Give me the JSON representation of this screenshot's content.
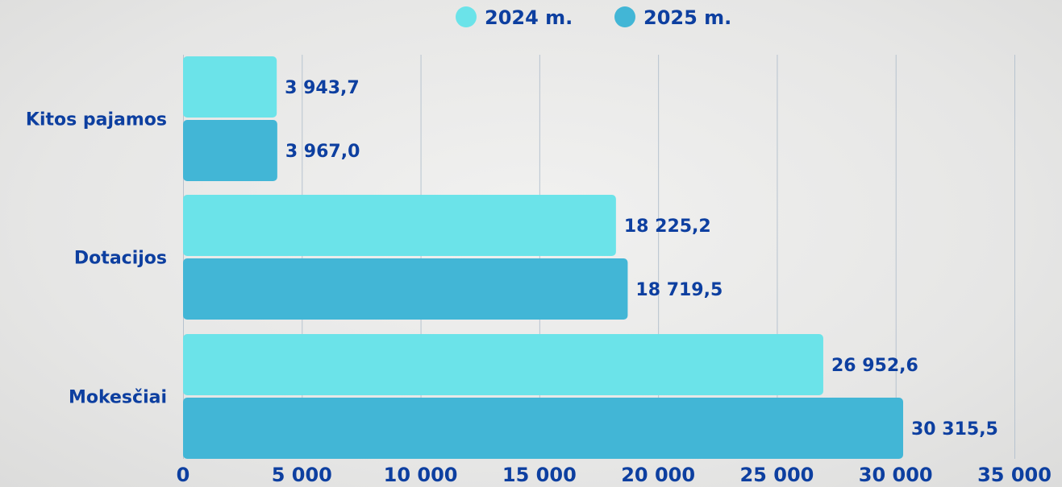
{
  "chart_data": {
    "type": "bar",
    "orientation": "horizontal",
    "categories": [
      "Kitos pajamos",
      "Dotacijos",
      "Mokesčiai"
    ],
    "series": [
      {
        "name": "2024 m.",
        "color": "#6be3e9",
        "values": [
          3943.7,
          18225.2,
          26952.6
        ],
        "labels": [
          "3 943,7",
          "18 225,2",
          "26 952,6"
        ]
      },
      {
        "name": "2025 m.",
        "color": "#42b6d6",
        "values": [
          3967.0,
          18719.5,
          30315.5
        ],
        "labels": [
          "3 967,0",
          "18 719,5",
          "30 315,5"
        ]
      }
    ],
    "xlim": [
      0,
      35000
    ],
    "xticks": [
      0,
      5000,
      10000,
      15000,
      20000,
      25000,
      30000,
      35000
    ],
    "xtick_labels": [
      "0",
      "5 000",
      "10 000",
      "15 000",
      "20 000",
      "25 000",
      "30 000",
      "35 000"
    ],
    "grid": true,
    "legend_position": "top-center",
    "title": "",
    "xlabel": "",
    "ylabel": ""
  },
  "colors": {
    "text": "#0d3fa0",
    "grid": "#b7c3cf"
  }
}
